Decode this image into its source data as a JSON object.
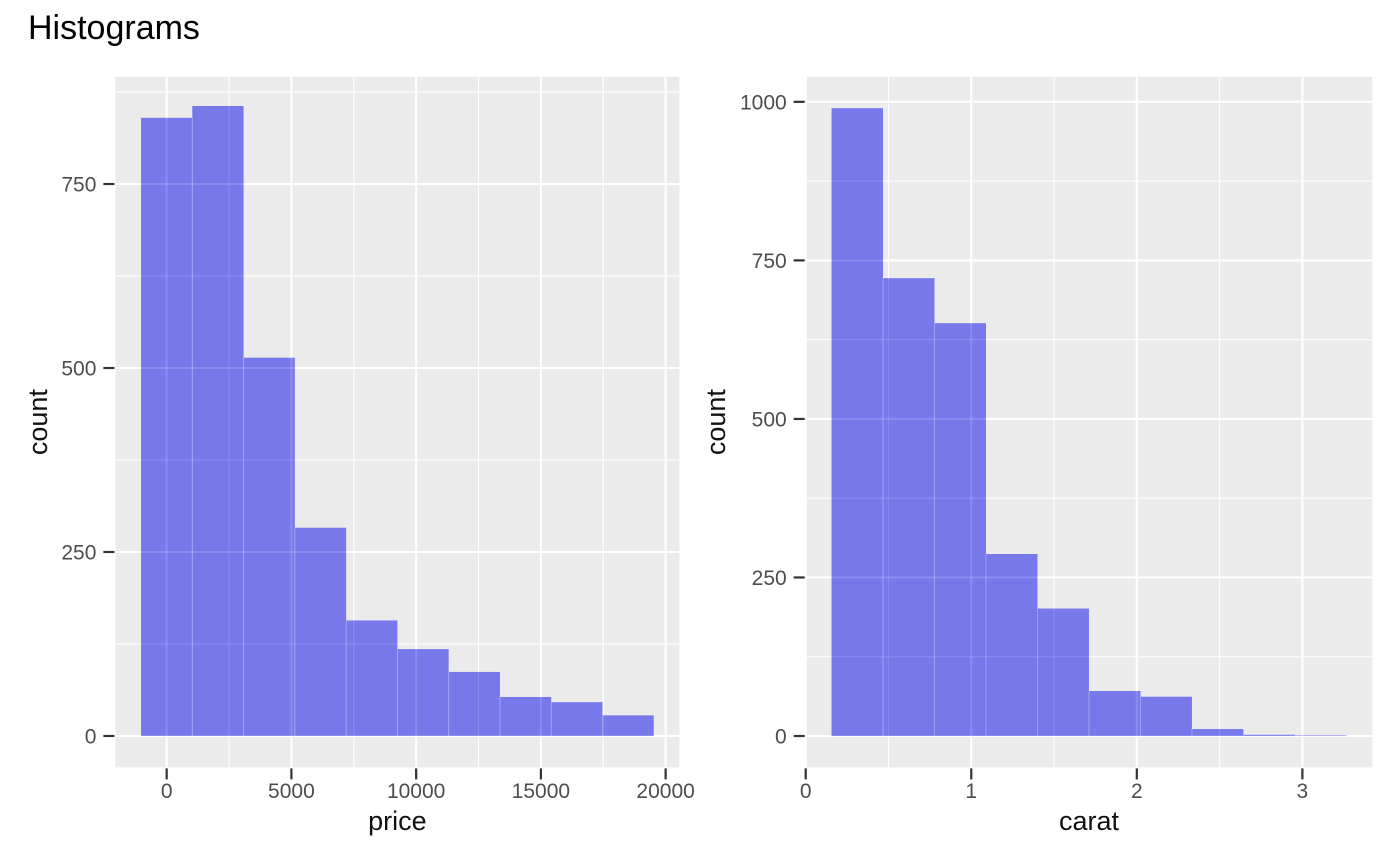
{
  "title": "Histograms",
  "style": {
    "figure_background": "#FFFFFF",
    "panel_background": "#EBEBEB",
    "grid_color": "#FFFFFF",
    "bar_fill": "#6365EB",
    "bar_opacity": 0.85,
    "bar_seam_color": "rgba(255,255,255,0.28)",
    "tick_mark_color": "#333333",
    "tick_label_color": "#4D4D4D",
    "axis_title_color": "#111111",
    "title_color": "#000000"
  },
  "chart_data": [
    {
      "type": "bar",
      "name": "price-histogram",
      "subtype": "histogram",
      "title": "",
      "xlabel": "price",
      "ylabel": "count",
      "bin_edges": [
        -1027.6,
        1027.6,
        3082.8,
        5138.0,
        7193.2,
        9248.4,
        11303.6,
        13358.8,
        15414.0,
        17469.2,
        19524.4
      ],
      "counts": [
        840,
        856,
        514,
        283,
        157,
        118,
        87,
        53,
        46,
        28
      ],
      "xlim": [
        -2055.2,
        20552.0
      ],
      "ylim": [
        -42.7,
        895.7
      ],
      "x_breaks": [
        0,
        5000,
        10000,
        15000,
        20000
      ],
      "x_break_labels": [
        "0",
        "5000",
        "10000",
        "15000",
        "20000"
      ],
      "x_minor_breaks": [
        2500,
        7500,
        12500,
        17500
      ],
      "y_breaks": [
        0,
        250,
        500,
        750
      ],
      "y_break_labels": [
        "0",
        "250",
        "500",
        "750"
      ],
      "y_minor_breaks": [
        125,
        375,
        625,
        875
      ],
      "grid": true,
      "legend": "none"
    },
    {
      "type": "bar",
      "name": "carat-histogram",
      "subtype": "histogram",
      "title": "",
      "xlabel": "carat",
      "ylabel": "count",
      "bin_edges": [
        0.156,
        0.467,
        0.778,
        1.089,
        1.4,
        1.711,
        2.022,
        2.333,
        2.644,
        2.956,
        3.267
      ],
      "counts": [
        990,
        722,
        651,
        287,
        201,
        71,
        62,
        11,
        2,
        1
      ],
      "xlim": [
        0.0,
        3.4223
      ],
      "ylim": [
        -49.5,
        1039.5
      ],
      "x_breaks": [
        0,
        1,
        2,
        3
      ],
      "x_break_labels": [
        "0",
        "1",
        "2",
        "3"
      ],
      "x_minor_breaks": [
        0.5,
        1.5,
        2.5
      ],
      "y_breaks": [
        0,
        250,
        500,
        750,
        1000
      ],
      "y_break_labels": [
        "0",
        "250",
        "500",
        "750",
        "1000"
      ],
      "y_minor_breaks": [
        125,
        375,
        625,
        875
      ],
      "grid": true,
      "legend": "none"
    }
  ]
}
